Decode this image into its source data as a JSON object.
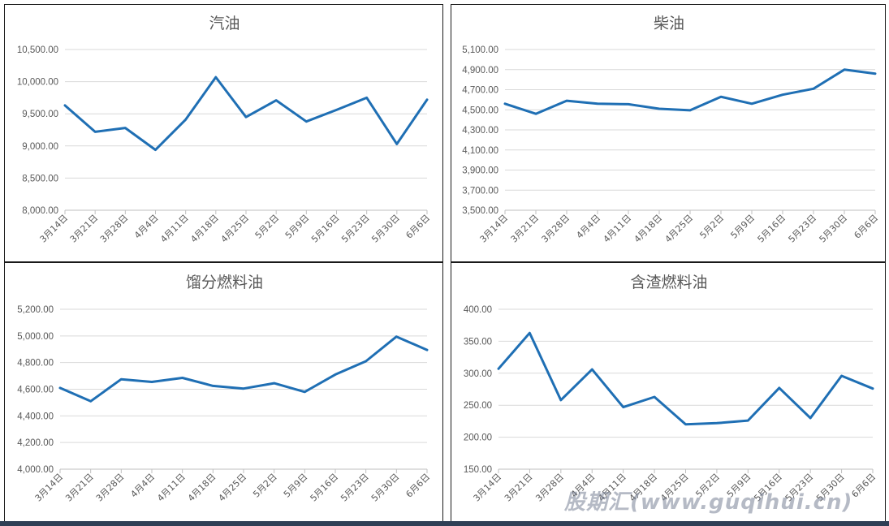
{
  "style": {
    "line_color": "#1f6fb4",
    "grid_color": "#d9d9d9",
    "text_color": "#595959"
  },
  "watermark": "股期汇(www.guqihui.cn)",
  "chart_data": [
    {
      "type": "line",
      "title": "汽油",
      "categories": [
        "3月14日",
        "3月21日",
        "3月28日",
        "4月4日",
        "4月11日",
        "4月18日",
        "4月25日",
        "5月2日",
        "5月9日",
        "5月16日",
        "5月23日",
        "5月30日",
        "6月6日"
      ],
      "series": [
        {
          "values": [
            9630,
            9220,
            9280,
            8940,
            9410,
            10070,
            9450,
            9710,
            9380,
            9560,
            9750,
            9030,
            9720
          ]
        }
      ],
      "yticks": [
        "8,000.00",
        "8,500.00",
        "9,000.00",
        "9,500.00",
        "10,000.00",
        "10,500.00"
      ],
      "ylim": [
        8000,
        10500
      ],
      "grid": true
    },
    {
      "type": "line",
      "title": "柴油",
      "categories": [
        "3月14日",
        "3月21日",
        "3月28日",
        "4月4日",
        "4月11日",
        "4月18日",
        "4月25日",
        "5月2日",
        "5月9日",
        "5月16日",
        "5月23日",
        "5月30日",
        "6月6日"
      ],
      "series": [
        {
          "values": [
            4560,
            4460,
            4590,
            4560,
            4555,
            4510,
            4495,
            4630,
            4560,
            4650,
            4710,
            4900,
            4860
          ]
        }
      ],
      "yticks": [
        "3,500.00",
        "3,700.00",
        "3,900.00",
        "4,100.00",
        "4,300.00",
        "4,500.00",
        "4,700.00",
        "4,900.00",
        "5,100.00"
      ],
      "ylim": [
        3500,
        5100
      ],
      "grid": true
    },
    {
      "type": "line",
      "title": "馏分燃料油",
      "categories": [
        "3月14日",
        "3月21日",
        "3月28日",
        "4月4日",
        "4月11日",
        "4月18日",
        "4月25日",
        "5月2日",
        "5月9日",
        "5月16日",
        "5月23日",
        "5月30日",
        "6月6日"
      ],
      "series": [
        {
          "values": [
            4610,
            4510,
            4675,
            4655,
            4685,
            4625,
            4605,
            4645,
            4580,
            4710,
            4810,
            4995,
            4895
          ]
        }
      ],
      "yticks": [
        "4,000.00",
        "4,200.00",
        "4,400.00",
        "4,600.00",
        "4,800.00",
        "5,000.00",
        "5,200.00"
      ],
      "ylim": [
        4000,
        5200
      ],
      "grid": true
    },
    {
      "type": "line",
      "title": "含渣燃料油",
      "categories": [
        "3月14日",
        "3月21日",
        "3月28日",
        "4月4日",
        "4月11日",
        "4月18日",
        "4月25日",
        "5月2日",
        "5月9日",
        "5月16日",
        "5月23日",
        "5月30日",
        "6月6日"
      ],
      "series": [
        {
          "values": [
            307,
            363,
            258,
            306,
            247,
            263,
            220,
            222,
            226,
            277,
            230,
            296,
            276
          ]
        }
      ],
      "yticks": [
        "150.00",
        "200.00",
        "250.00",
        "300.00",
        "350.00",
        "400.00"
      ],
      "ylim": [
        150,
        400
      ],
      "grid": true
    }
  ]
}
